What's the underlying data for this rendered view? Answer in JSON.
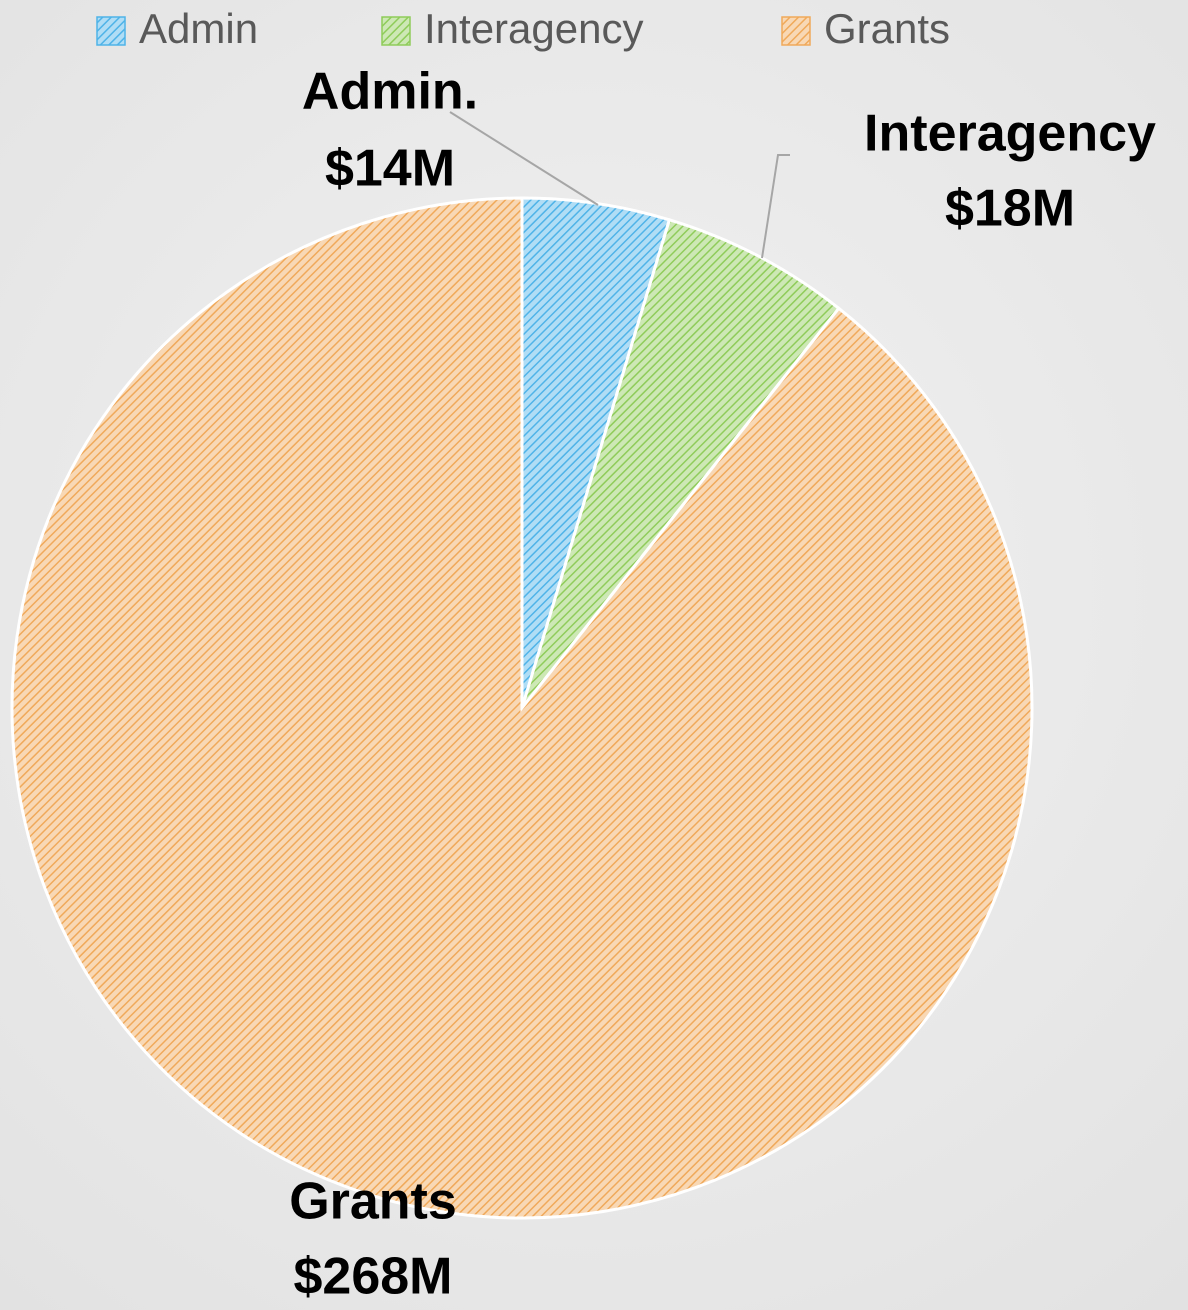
{
  "chart_data": {
    "type": "pie",
    "categories": [
      "Admin",
      "Interagency",
      "Grants"
    ],
    "values": [
      14,
      18,
      268
    ],
    "label_names": [
      "Admin.",
      "Interagency",
      "Grants"
    ],
    "value_labels": [
      "$14M",
      "$18M",
      "$268M"
    ],
    "colors": [
      "#4fb3e8",
      "#8fcc5a",
      "#f0a95a"
    ],
    "legend": "top"
  }
}
